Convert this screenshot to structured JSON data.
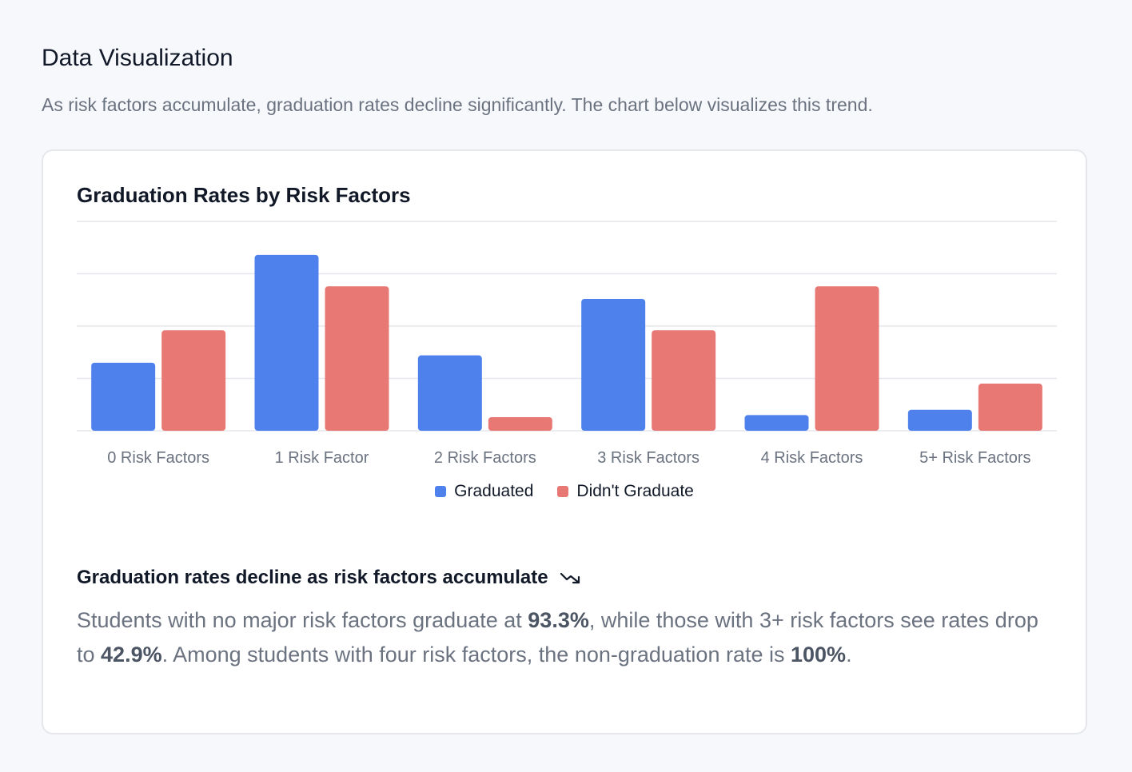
{
  "section": {
    "title": "Data Visualization",
    "description": "As risk factors accumulate, graduation rates decline significantly. The chart below visualizes this trend."
  },
  "colors": {
    "graduated": "#4f81ed",
    "didnt_graduate": "#e87873",
    "grid": "#e5e7eb"
  },
  "chart_data": {
    "type": "bar",
    "title": "Graduation Rates by Risk Factors",
    "categories": [
      "0 Risk Factors",
      "1 Risk Factor",
      "2 Risk Factors",
      "3 Risk Factors",
      "4 Risk Factors",
      "5+ Risk Factors"
    ],
    "series": [
      {
        "name": "Graduated",
        "values": [
          6.5,
          16.8,
          7.2,
          12.6,
          1.5,
          2.0
        ]
      },
      {
        "name": "Didn't Graduate",
        "values": [
          9.6,
          13.8,
          1.3,
          9.6,
          13.8,
          4.5
        ]
      }
    ],
    "ylim": [
      0,
      20
    ],
    "grid": true,
    "legend": "bottom"
  },
  "insight": {
    "title": "Graduation rates decline as risk factors accumulate",
    "icon": "trending-down-icon",
    "text_1": "Students with no major risk factors graduate at ",
    "value_1": "93.3%",
    "text_2": ", while those with 3+ risk factors see rates drop to ",
    "value_2": "42.9%",
    "text_3": ". Among students with four risk factors, the non-graduation rate is ",
    "value_3": "100%",
    "text_4": "."
  }
}
